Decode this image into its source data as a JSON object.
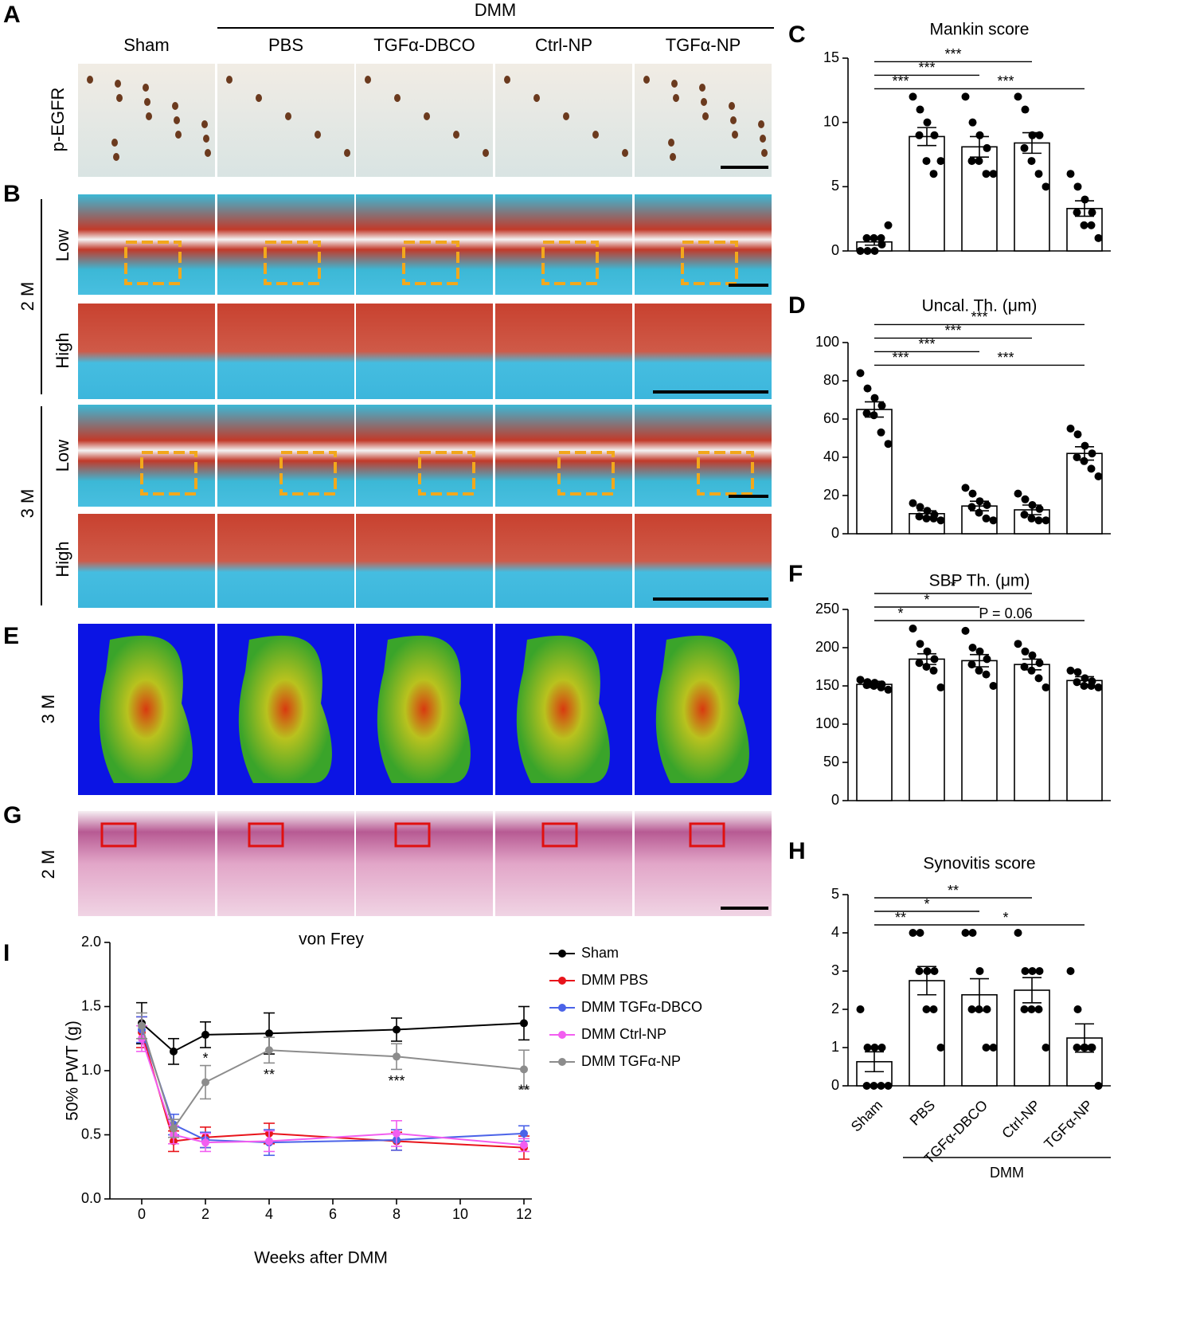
{
  "panel_letters": [
    "A",
    "B",
    "C",
    "D",
    "E",
    "F",
    "G",
    "H",
    "I"
  ],
  "image_panels": {
    "group_label": "DMM",
    "columns": [
      "Sham",
      "PBS",
      "TGFα-DBCO",
      "Ctrl-NP",
      "TGFα-NP"
    ],
    "row_labels": {
      "p_egfr": "p-EGFR",
      "low_2m": "Low",
      "high_2m": "High",
      "low_3m": "Low",
      "high_3m": "High"
    },
    "time_labels": [
      "2 M",
      "3 M",
      "3 M",
      "2 M"
    ]
  },
  "chart_data": [
    {
      "type": "bar",
      "title": "Mankin score",
      "color": "#ffffff",
      "point_color": "#000000",
      "values": [
        0.7,
        8.9,
        8.1,
        8.4,
        3.3
      ],
      "errors": [
        0.25,
        0.7,
        0.8,
        0.8,
        0.6
      ],
      "points": [
        [
          0,
          0,
          0,
          0.5,
          1,
          1,
          1,
          2
        ],
        [
          12,
          11,
          10,
          9,
          9,
          7,
          6,
          7
        ],
        [
          12,
          10,
          9,
          8,
          7,
          7,
          6,
          6
        ],
        [
          12,
          11,
          9,
          9,
          8,
          7,
          6,
          5
        ],
        [
          6,
          5,
          4,
          3,
          3,
          2,
          2,
          1
        ]
      ],
      "ylim": [
        0,
        15
      ],
      "yticks": [
        0,
        5,
        10,
        15
      ],
      "brackets": [
        {
          "label": "***",
          "from": 0,
          "to": 1
        },
        {
          "label": "***",
          "from": 1,
          "to": 4
        },
        {
          "label": "***",
          "from": 0,
          "to": 2
        },
        {
          "label": "***",
          "from": 0,
          "to": 3
        }
      ]
    },
    {
      "type": "bar",
      "title": "Uncal. Th. (μm)",
      "color": "#ffffff",
      "point_color": "#000000",
      "values": [
        65,
        10.5,
        14.5,
        12.5,
        42
      ],
      "errors": [
        4,
        1.5,
        2.5,
        2.5,
        3.5
      ],
      "points": [
        [
          84,
          76,
          71,
          67,
          63,
          62,
          53,
          47
        ],
        [
          16,
          14,
          12,
          10,
          9,
          8,
          8,
          7
        ],
        [
          24,
          21,
          17,
          15,
          14,
          11,
          8,
          7
        ],
        [
          21,
          18,
          15,
          13,
          10,
          8,
          7,
          7
        ],
        [
          55,
          52,
          46,
          42,
          40,
          38,
          34,
          30
        ]
      ],
      "ylim": [
        0,
        100
      ],
      "yticks": [
        0,
        20,
        40,
        60,
        80,
        100
      ],
      "brackets": [
        {
          "label": "***",
          "from": 0,
          "to": 1
        },
        {
          "label": "***",
          "from": 1,
          "to": 4
        },
        {
          "label": "***",
          "from": 0,
          "to": 2
        },
        {
          "label": "***",
          "from": 0,
          "to": 3
        },
        {
          "label": "***",
          "from": 0,
          "to": 4
        }
      ]
    },
    {
      "type": "bar",
      "title": "SBP Th. (μm)",
      "color": "#ffffff",
      "point_color": "#000000",
      "values": [
        152,
        185,
        183,
        178,
        157
      ],
      "errors": [
        4,
        7,
        8,
        7,
        5
      ],
      "points": [
        [
          158,
          155,
          154,
          152,
          151,
          150,
          148,
          145
        ],
        [
          225,
          205,
          195,
          185,
          180,
          175,
          170,
          148
        ],
        [
          222,
          200,
          195,
          185,
          178,
          170,
          165,
          150
        ],
        [
          205,
          195,
          190,
          180,
          175,
          170,
          160,
          148
        ],
        [
          170,
          168,
          160,
          156,
          155,
          150,
          150,
          148
        ]
      ],
      "ylim": [
        0,
        250
      ],
      "yticks": [
        0,
        50,
        100,
        150,
        200,
        250
      ],
      "brackets": [
        {
          "label": "*",
          "from": 0,
          "to": 1
        },
        {
          "label": "P = 0.06",
          "from": 1,
          "to": 4
        },
        {
          "label": "*",
          "from": 0,
          "to": 2
        },
        {
          "label": "*",
          "from": 0,
          "to": 3
        }
      ]
    },
    {
      "type": "bar",
      "title": "Synovitis score",
      "color": "#ffffff",
      "point_color": "#000000",
      "categories": [
        "Sham",
        "PBS",
        "TGFα-DBCO",
        "Ctrl-NP",
        "TGFα-NP"
      ],
      "group_label": "DMM",
      "values": [
        0.63,
        2.75,
        2.38,
        2.5,
        1.25
      ],
      "errors": [
        0.26,
        0.37,
        0.42,
        0.33,
        0.37
      ],
      "points": [
        [
          2,
          1,
          1,
          1,
          0,
          0,
          0,
          0
        ],
        [
          4,
          4,
          3,
          3,
          3,
          2,
          2,
          1
        ],
        [
          4,
          4,
          3,
          2,
          2,
          2,
          1,
          1
        ],
        [
          4,
          3,
          3,
          3,
          2,
          2,
          2,
          1
        ],
        [
          3,
          2,
          1,
          1,
          1,
          1,
          1,
          0
        ]
      ],
      "ylim": [
        0,
        5
      ],
      "yticks": [
        0,
        1,
        2,
        3,
        4,
        5
      ],
      "brackets": [
        {
          "label": "**",
          "from": 0,
          "to": 1
        },
        {
          "label": "*",
          "from": 1,
          "to": 4
        },
        {
          "label": "*",
          "from": 0,
          "to": 2
        },
        {
          "label": "**",
          "from": 0,
          "to": 3
        }
      ]
    },
    {
      "type": "line",
      "title": "von Frey",
      "x_label": "Weeks after DMM",
      "y_label": "50% PWT (g)",
      "x": [
        0,
        1,
        2,
        4,
        8,
        12
      ],
      "xlim": [
        -1,
        12.25
      ],
      "xticks": [
        0,
        2,
        4,
        6,
        8,
        10,
        12
      ],
      "ylim": [
        0,
        2
      ],
      "yticks": [
        {
          "value": 0,
          "label": "0.0"
        },
        {
          "value": 0.5,
          "label": "0.5"
        },
        {
          "value": 1,
          "label": "1.0"
        },
        {
          "value": 1.5,
          "label": "1.5"
        },
        {
          "value": 2,
          "label": "2.0"
        }
      ],
      "series": [
        {
          "name": "Sham",
          "color": "#000000",
          "values": [
            1.37,
            1.15,
            1.28,
            1.29,
            1.32,
            1.37
          ],
          "errors": [
            0.16,
            0.1,
            0.1,
            0.16,
            0.09,
            0.13
          ]
        },
        {
          "name": "DMM PBS",
          "color": "#e8141b",
          "values": [
            1.3,
            0.45,
            0.48,
            0.51,
            0.45,
            0.4
          ],
          "errors": [
            0.12,
            0.08,
            0.08,
            0.08,
            0.07,
            0.09
          ]
        },
        {
          "name": "DMM TGFα-DBCO",
          "color": "#4b63e8",
          "values": [
            1.32,
            0.58,
            0.46,
            0.44,
            0.46,
            0.51
          ],
          "errors": [
            0.1,
            0.08,
            0.06,
            0.1,
            0.08,
            0.06
          ]
        },
        {
          "name": "DMM Ctrl-NP",
          "color": "#f25ef0",
          "values": [
            1.25,
            0.5,
            0.44,
            0.45,
            0.51,
            0.42
          ],
          "errors": [
            0.1,
            0.07,
            0.07,
            0.08,
            0.1,
            0.05
          ]
        },
        {
          "name": "DMM TGFα-NP",
          "color": "#8c8c8c",
          "values": [
            1.35,
            0.55,
            0.91,
            1.16,
            1.11,
            1.01
          ],
          "errors": [
            0.1,
            0.07,
            0.13,
            0.1,
            0.1,
            0.15
          ]
        }
      ],
      "annotations": [
        {
          "text": "*",
          "x": 2,
          "y": 1.09
        },
        {
          "text": "**",
          "x": 4,
          "y": 0.96
        },
        {
          "text": "***",
          "x": 8,
          "y": 0.91
        },
        {
          "text": "**",
          "x": 12,
          "y": 0.84
        }
      ]
    }
  ]
}
